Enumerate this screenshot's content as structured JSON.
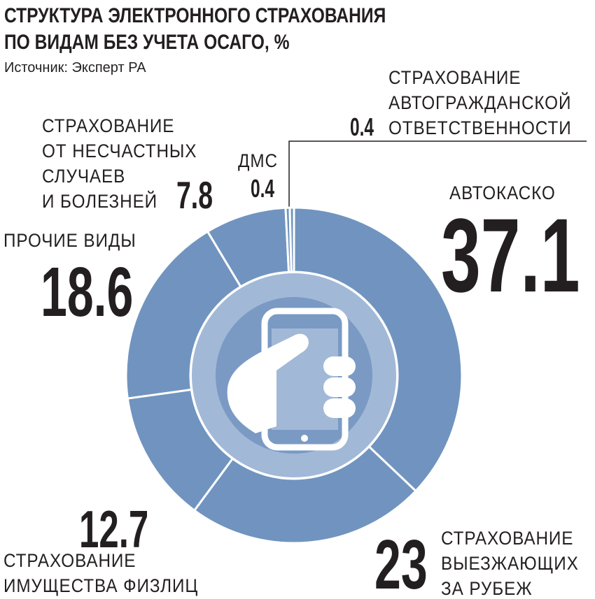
{
  "chart_data": {
    "type": "donut",
    "title": "СТРУКТУРА ЭЛЕКТРОННОГО СТРАХОВАНИЯ\nПО ВИДАМ БЕЗ УЧЕТА ОСАГО, %",
    "source": "Источник: Эксперт РА",
    "categories": [
      "АВТОКАСКО",
      "СТРАХОВАНИЕ\nВЫЕЗЖАЮЩИХ\nЗА РУБЕЖ",
      "СТРАХОВАНИЕ\nИМУЩЕСТВА ФИЗЛИЦ",
      "ПРОЧИЕ ВИДЫ",
      "СТРАХОВАНИЕ\nОТ НЕСЧАСТНЫХ\nСЛУЧАЕВ\nИ БОЛЕЗНЕЙ",
      "ДМС",
      "СТРАХОВАНИЕ\nАВТОГРАЖДАНСКОЙ\nОТВЕТСТВЕННОСТИ"
    ],
    "values": [
      37.1,
      23,
      12.7,
      18.6,
      7.8,
      0.4,
      0.4
    ],
    "color": "#7094bf"
  }
}
